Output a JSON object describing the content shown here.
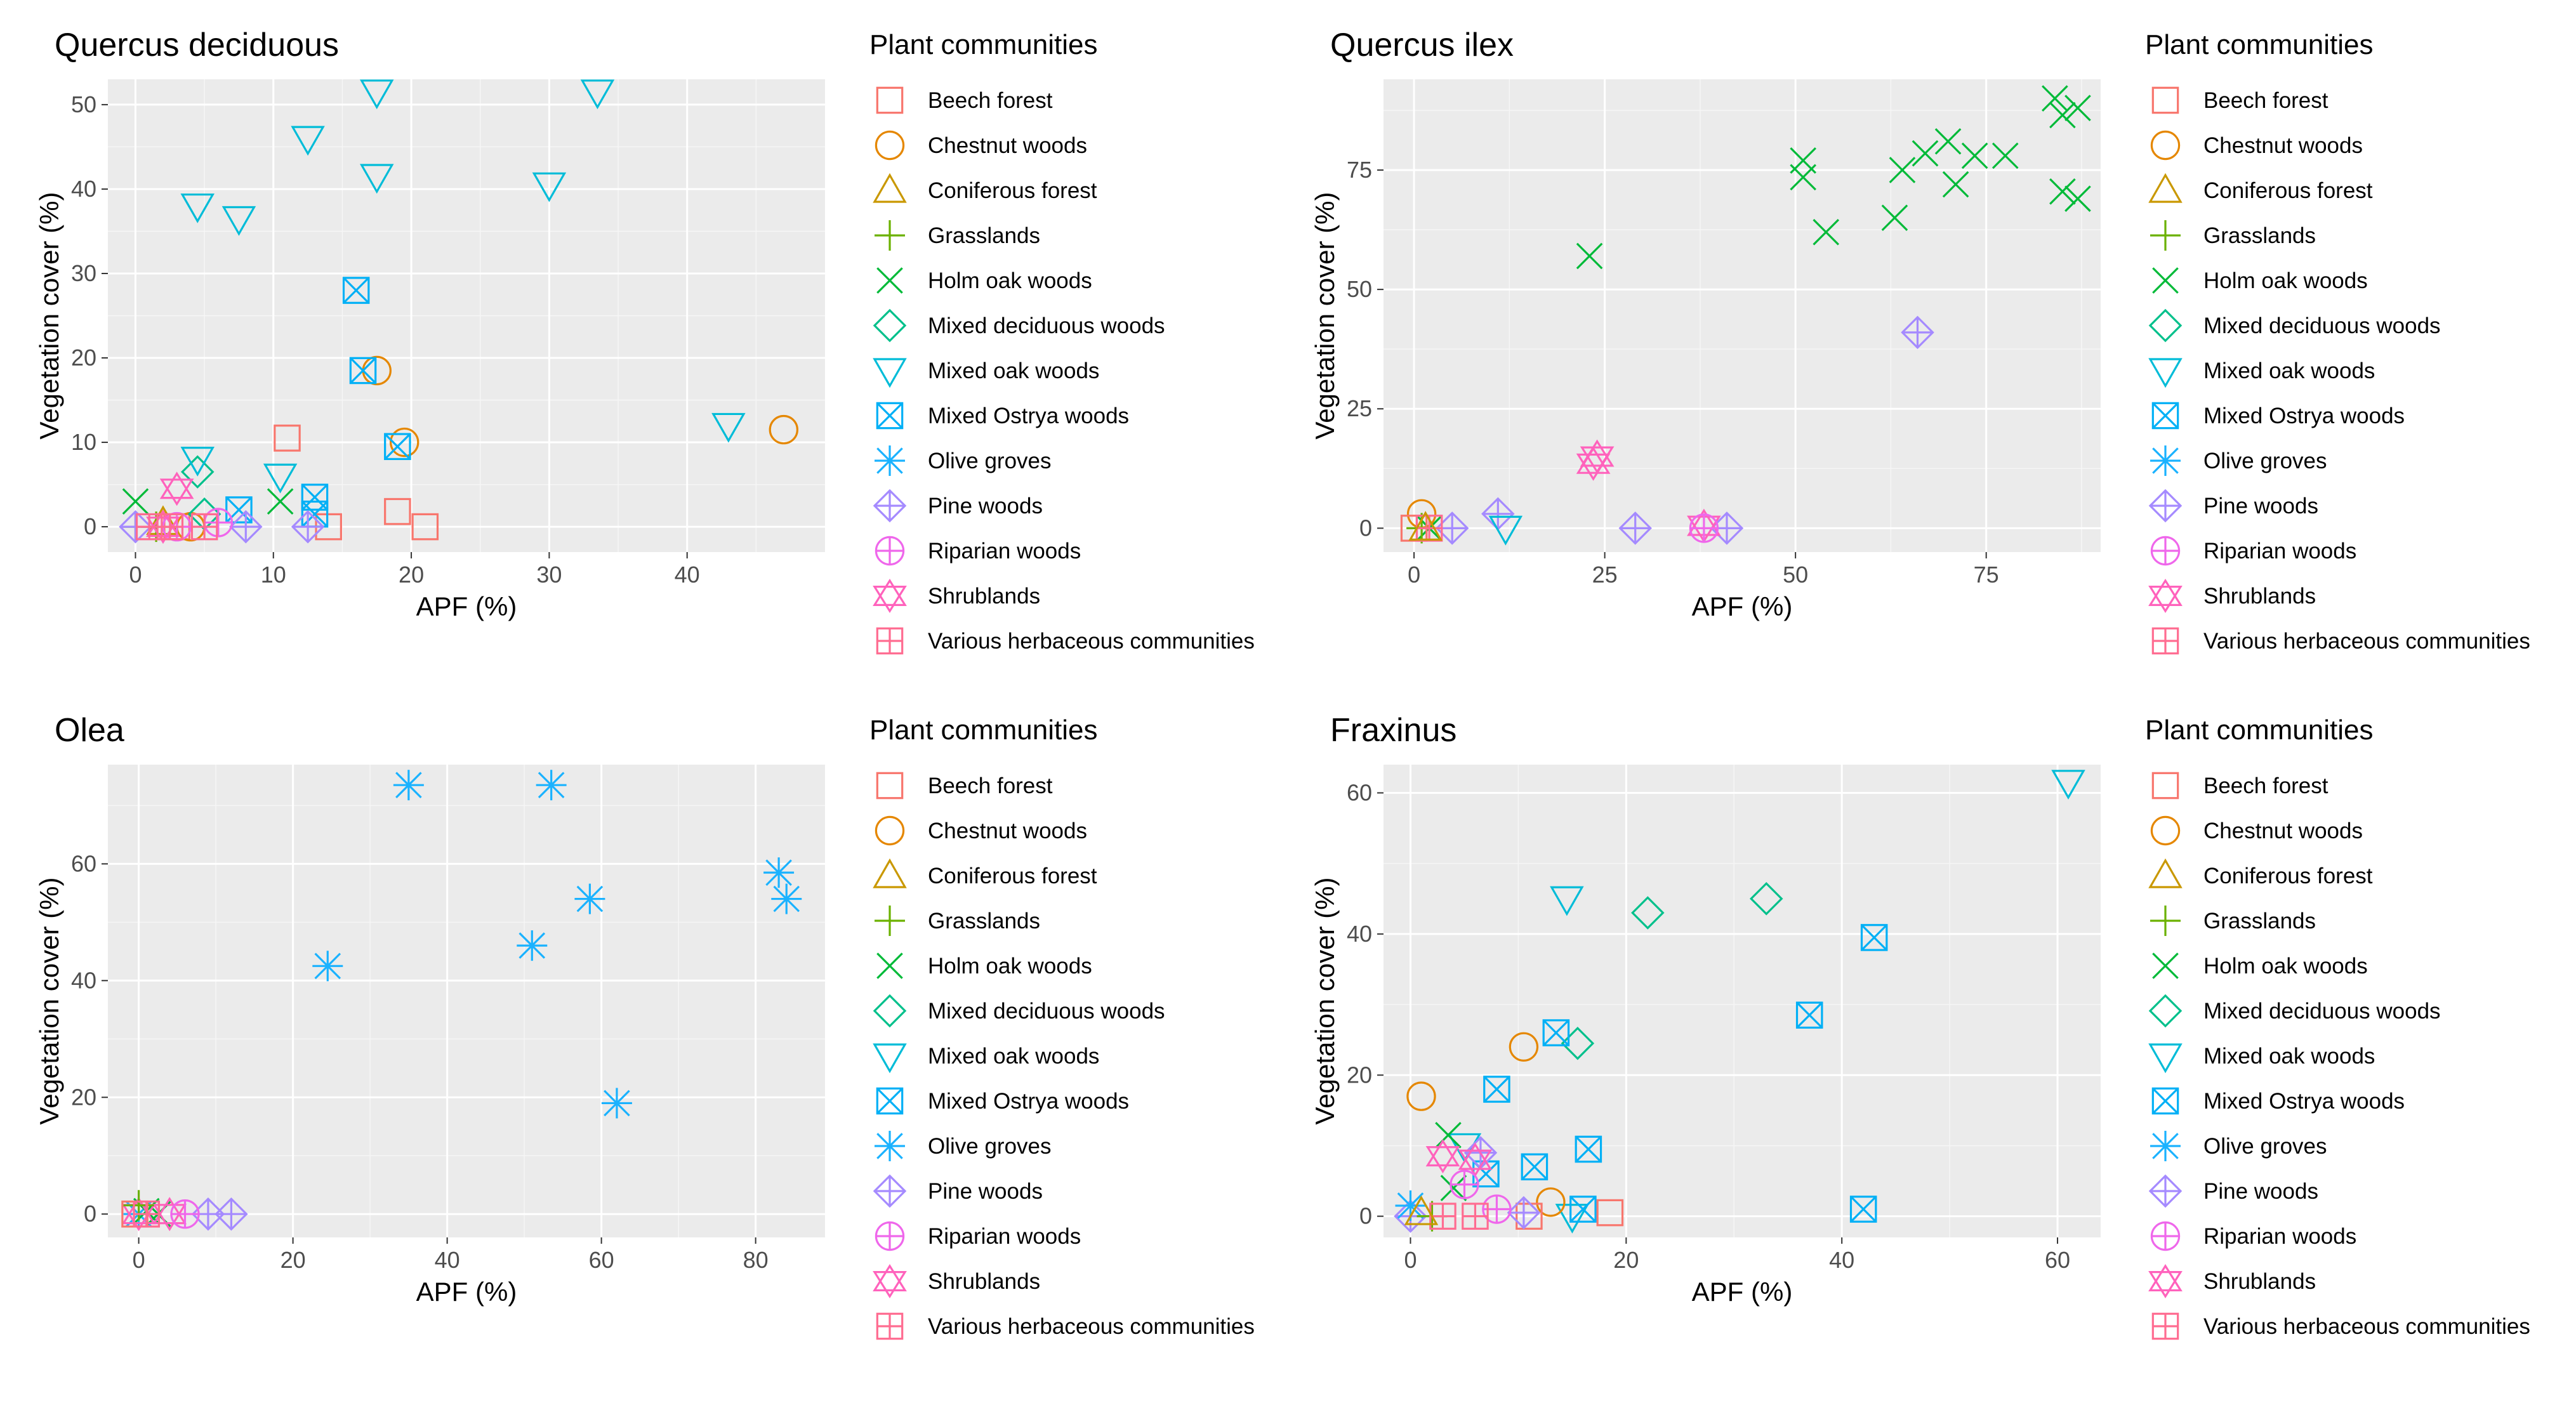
{
  "legend": {
    "title": "Plant communities",
    "items": [
      {
        "name": "Beech forest",
        "color": "#F8766D",
        "shape": "square"
      },
      {
        "name": "Chestnut woods",
        "color": "#E58700",
        "shape": "circle"
      },
      {
        "name": "Coniferous forest",
        "color": "#C99800",
        "shape": "triangle-up"
      },
      {
        "name": "Grasslands",
        "color": "#6BB100",
        "shape": "plus"
      },
      {
        "name": "Holm oak woods",
        "color": "#00BA38",
        "shape": "cross"
      },
      {
        "name": "Mixed deciduous woods",
        "color": "#00C08B",
        "shape": "diamond"
      },
      {
        "name": "Mixed oak woods",
        "color": "#00BCD8",
        "shape": "triangle-down"
      },
      {
        "name": "Mixed Ostrya woods",
        "color": "#00B0F6",
        "shape": "square-cross"
      },
      {
        "name": "Olive groves",
        "color": "#1AB2FF",
        "shape": "asterisk"
      },
      {
        "name": "Pine woods",
        "color": "#A58AFF",
        "shape": "diamond-plus"
      },
      {
        "name": "Riparian woods",
        "color": "#EF67EB",
        "shape": "circle-plus"
      },
      {
        "name": "Shrublands",
        "color": "#FF62BC",
        "shape": "star-of-david"
      },
      {
        "name": "Various herbaceous communities",
        "color": "#FF6C91",
        "shape": "square-plus"
      }
    ]
  },
  "chart_data": [
    {
      "type": "scatter",
      "title": "Quercus deciduous",
      "xlabel": "APF (%)",
      "ylabel": "Vegetation cover (%)",
      "xlim": [
        -2,
        50
      ],
      "ylim": [
        -3,
        53
      ],
      "xticks": [
        0,
        10,
        20,
        30,
        40
      ],
      "yticks": [
        0,
        10,
        20,
        30,
        40,
        50
      ],
      "grid": true,
      "legend_position": "right",
      "points": [
        {
          "community": "Beech forest",
          "x": 11,
          "y": 10.5
        },
        {
          "community": "Beech forest",
          "x": 19,
          "y": 1.8
        },
        {
          "community": "Beech forest",
          "x": 21,
          "y": 0
        },
        {
          "community": "Beech forest",
          "x": 14,
          "y": 0
        },
        {
          "community": "Beech forest",
          "x": 3,
          "y": 0
        },
        {
          "community": "Chestnut woods",
          "x": 17.5,
          "y": 18.5
        },
        {
          "community": "Chestnut woods",
          "x": 19.5,
          "y": 10
        },
        {
          "community": "Chestnut woods",
          "x": 47,
          "y": 11.5
        },
        {
          "community": "Chestnut woods",
          "x": 4,
          "y": 0
        },
        {
          "community": "Coniferous forest",
          "x": 2,
          "y": 0.5
        },
        {
          "community": "Grasslands",
          "x": 1.5,
          "y": 0
        },
        {
          "community": "Grasslands",
          "x": 0,
          "y": 0
        },
        {
          "community": "Holm oak woods",
          "x": 0,
          "y": 3
        },
        {
          "community": "Holm oak woods",
          "x": 10.5,
          "y": 3
        },
        {
          "community": "Mixed deciduous woods",
          "x": 4.5,
          "y": 6.5
        },
        {
          "community": "Mixed deciduous woods",
          "x": 5,
          "y": 1.5
        },
        {
          "community": "Mixed oak woods",
          "x": 17.5,
          "y": 51.5
        },
        {
          "community": "Mixed oak woods",
          "x": 33.5,
          "y": 51.5
        },
        {
          "community": "Mixed oak woods",
          "x": 12.5,
          "y": 46
        },
        {
          "community": "Mixed oak woods",
          "x": 17.5,
          "y": 41.5
        },
        {
          "community": "Mixed oak woods",
          "x": 30,
          "y": 40.5
        },
        {
          "community": "Mixed oak woods",
          "x": 4.5,
          "y": 38
        },
        {
          "community": "Mixed oak woods",
          "x": 7.5,
          "y": 36.5
        },
        {
          "community": "Mixed oak woods",
          "x": 43,
          "y": 12
        },
        {
          "community": "Mixed oak woods",
          "x": 4.5,
          "y": 8
        },
        {
          "community": "Mixed oak woods",
          "x": 10.5,
          "y": 6
        },
        {
          "community": "Mixed Ostrya woods",
          "x": 16,
          "y": 28
        },
        {
          "community": "Mixed Ostrya woods",
          "x": 16.5,
          "y": 18.5
        },
        {
          "community": "Mixed Ostrya woods",
          "x": 19,
          "y": 9.5
        },
        {
          "community": "Mixed Ostrya woods",
          "x": 13,
          "y": 3.5
        },
        {
          "community": "Mixed Ostrya woods",
          "x": 7.5,
          "y": 2
        },
        {
          "community": "Mixed Ostrya woods",
          "x": 13,
          "y": 1.5
        },
        {
          "community": "Pine woods",
          "x": 0,
          "y": 0
        },
        {
          "community": "Pine woods",
          "x": 8,
          "y": 0
        },
        {
          "community": "Pine woods",
          "x": 12.5,
          "y": 0
        },
        {
          "community": "Riparian woods",
          "x": 3,
          "y": 0
        },
        {
          "community": "Riparian woods",
          "x": 6,
          "y": 0.5
        },
        {
          "community": "Shrublands",
          "x": 3,
          "y": 4.5
        },
        {
          "community": "Shrublands",
          "x": 2,
          "y": 0
        },
        {
          "community": "Various herbaceous communities",
          "x": 2.5,
          "y": 0
        },
        {
          "community": "Various herbaceous communities",
          "x": 5,
          "y": 0
        },
        {
          "community": "Various herbaceous communities",
          "x": 1,
          "y": 0
        }
      ]
    },
    {
      "type": "scatter",
      "title": "Quercus ilex",
      "xlabel": "APF (%)",
      "ylabel": "Vegetation cover (%)",
      "xlim": [
        -4,
        90
      ],
      "ylim": [
        -5,
        94
      ],
      "xticks": [
        0,
        25,
        50,
        75
      ],
      "yticks": [
        0,
        25,
        50,
        75
      ],
      "grid": true,
      "legend_position": "right",
      "points": [
        {
          "community": "Holm oak woods",
          "x": 84,
          "y": 90
        },
        {
          "community": "Holm oak woods",
          "x": 85,
          "y": 86.5
        },
        {
          "community": "Holm oak woods",
          "x": 87,
          "y": 88
        },
        {
          "community": "Holm oak woods",
          "x": 70,
          "y": 81
        },
        {
          "community": "Holm oak woods",
          "x": 73.5,
          "y": 78
        },
        {
          "community": "Holm oak woods",
          "x": 77.5,
          "y": 78
        },
        {
          "community": "Holm oak woods",
          "x": 67,
          "y": 78.5
        },
        {
          "community": "Holm oak woods",
          "x": 51,
          "y": 77
        },
        {
          "community": "Holm oak woods",
          "x": 51,
          "y": 73.5
        },
        {
          "community": "Holm oak woods",
          "x": 64,
          "y": 75
        },
        {
          "community": "Holm oak woods",
          "x": 71,
          "y": 72
        },
        {
          "community": "Holm oak woods",
          "x": 85,
          "y": 70.5
        },
        {
          "community": "Holm oak woods",
          "x": 87,
          "y": 69
        },
        {
          "community": "Holm oak woods",
          "x": 63,
          "y": 65
        },
        {
          "community": "Holm oak woods",
          "x": 54,
          "y": 62
        },
        {
          "community": "Holm oak woods",
          "x": 23,
          "y": 57
        },
        {
          "community": "Holm oak woods",
          "x": 2,
          "y": 0
        },
        {
          "community": "Pine woods",
          "x": 66,
          "y": 41
        },
        {
          "community": "Pine woods",
          "x": 29,
          "y": 0
        },
        {
          "community": "Pine woods",
          "x": 41,
          "y": 0
        },
        {
          "community": "Pine woods",
          "x": 11,
          "y": 3
        },
        {
          "community": "Pine woods",
          "x": 5,
          "y": 0
        },
        {
          "community": "Shrublands",
          "x": 24,
          "y": 15
        },
        {
          "community": "Shrublands",
          "x": 23.5,
          "y": 13.5
        },
        {
          "community": "Shrublands",
          "x": 38,
          "y": 0.5
        },
        {
          "community": "Chestnut woods",
          "x": 1,
          "y": 3
        },
        {
          "community": "Mixed oak woods",
          "x": 12,
          "y": 0
        },
        {
          "community": "Riparian woods",
          "x": 38,
          "y": 0
        },
        {
          "community": "Beech forest",
          "x": 0,
          "y": 0
        },
        {
          "community": "Grasslands",
          "x": 1,
          "y": 0
        },
        {
          "community": "Various herbaceous communities",
          "x": 2,
          "y": 0
        },
        {
          "community": "Coniferous forest",
          "x": 1.5,
          "y": 0
        }
      ]
    },
    {
      "type": "scatter",
      "title": "Olea",
      "xlabel": "APF (%)",
      "ylabel": "Vegetation cover (%)",
      "xlim": [
        -4,
        89
      ],
      "ylim": [
        -4,
        77
      ],
      "xticks": [
        0,
        20,
        40,
        60,
        80
      ],
      "yticks": [
        0,
        20,
        40,
        60
      ],
      "grid": true,
      "legend_position": "right",
      "points": [
        {
          "community": "Olive groves",
          "x": 35,
          "y": 73.5
        },
        {
          "community": "Olive groves",
          "x": 53.5,
          "y": 73.5
        },
        {
          "community": "Olive groves",
          "x": 83,
          "y": 58.5
        },
        {
          "community": "Olive groves",
          "x": 84,
          "y": 54
        },
        {
          "community": "Olive groves",
          "x": 58.5,
          "y": 54
        },
        {
          "community": "Olive groves",
          "x": 51,
          "y": 46
        },
        {
          "community": "Olive groves",
          "x": 24.5,
          "y": 42.5
        },
        {
          "community": "Olive groves",
          "x": 62,
          "y": 19
        },
        {
          "community": "Olive groves",
          "x": 0,
          "y": 0
        },
        {
          "community": "Pine woods",
          "x": 9,
          "y": 0
        },
        {
          "community": "Pine woods",
          "x": 12,
          "y": 0
        },
        {
          "community": "Holm oak woods",
          "x": 2.5,
          "y": 0
        },
        {
          "community": "Holm oak woods",
          "x": 1,
          "y": 0.5
        },
        {
          "community": "Shrublands",
          "x": 4,
          "y": 0
        },
        {
          "community": "Shrublands",
          "x": 0,
          "y": 0
        },
        {
          "community": "Riparian woods",
          "x": 6,
          "y": 0
        },
        {
          "community": "Grasslands",
          "x": 0,
          "y": 1.5
        },
        {
          "community": "Beech forest",
          "x": -0.5,
          "y": 0
        },
        {
          "community": "Various herbaceous communities",
          "x": 1,
          "y": 0
        }
      ]
    },
    {
      "type": "scatter",
      "title": "Fraxinus",
      "xlabel": "APF (%)",
      "ylabel": "Vegetation cover (%)",
      "xlim": [
        -2.5,
        64
      ],
      "ylim": [
        -3,
        64
      ],
      "xticks": [
        0,
        20,
        40,
        60
      ],
      "yticks": [
        0,
        20,
        40,
        60
      ],
      "grid": true,
      "legend_position": "right",
      "points": [
        {
          "community": "Mixed oak woods",
          "x": 61,
          "y": 61.5
        },
        {
          "community": "Mixed oak woods",
          "x": 14.5,
          "y": 45
        },
        {
          "community": "Mixed oak woods",
          "x": 5,
          "y": 10
        },
        {
          "community": "Mixed oak woods",
          "x": 15,
          "y": 0
        },
        {
          "community": "Mixed deciduous woods",
          "x": 33,
          "y": 45
        },
        {
          "community": "Mixed deciduous woods",
          "x": 22,
          "y": 43
        },
        {
          "community": "Mixed deciduous woods",
          "x": 15.5,
          "y": 24.5
        },
        {
          "community": "Mixed Ostrya woods",
          "x": 43,
          "y": 39.5
        },
        {
          "community": "Mixed Ostrya woods",
          "x": 37,
          "y": 28.5
        },
        {
          "community": "Mixed Ostrya woods",
          "x": 13.5,
          "y": 26
        },
        {
          "community": "Mixed Ostrya woods",
          "x": 8,
          "y": 18
        },
        {
          "community": "Mixed Ostrya woods",
          "x": 16.5,
          "y": 9.5
        },
        {
          "community": "Mixed Ostrya woods",
          "x": 11.5,
          "y": 7
        },
        {
          "community": "Mixed Ostrya woods",
          "x": 42,
          "y": 1
        },
        {
          "community": "Mixed Ostrya woods",
          "x": 16,
          "y": 1
        },
        {
          "community": "Mixed Ostrya woods",
          "x": 7,
          "y": 6
        },
        {
          "community": "Chestnut woods",
          "x": 10.5,
          "y": 24
        },
        {
          "community": "Chestnut woods",
          "x": 1,
          "y": 17
        },
        {
          "community": "Chestnut woods",
          "x": 13,
          "y": 2
        },
        {
          "community": "Beech forest",
          "x": 18.5,
          "y": 0.5
        },
        {
          "community": "Beech forest",
          "x": 11,
          "y": 0
        },
        {
          "community": "Holm oak woods",
          "x": 3.5,
          "y": 11.5
        },
        {
          "community": "Holm oak woods",
          "x": 4,
          "y": 4
        },
        {
          "community": "Pine woods",
          "x": 6.5,
          "y": 9
        },
        {
          "community": "Pine woods",
          "x": 10.5,
          "y": 0.5
        },
        {
          "community": "Pine woods",
          "x": 0,
          "y": 0
        },
        {
          "community": "Shrublands",
          "x": 3,
          "y": 8.5
        },
        {
          "community": "Shrublands",
          "x": 6,
          "y": 8
        },
        {
          "community": "Riparian woods",
          "x": 5,
          "y": 4.5
        },
        {
          "community": "Riparian woods",
          "x": 8,
          "y": 1
        },
        {
          "community": "Olive groves",
          "x": 0,
          "y": 1.5
        },
        {
          "community": "Grasslands",
          "x": 2,
          "y": 0
        },
        {
          "community": "Various herbaceous communities",
          "x": 3,
          "y": 0
        },
        {
          "community": "Various herbaceous communities",
          "x": 6,
          "y": 0
        },
        {
          "community": "Coniferous forest",
          "x": 1,
          "y": 0.5
        }
      ]
    }
  ]
}
